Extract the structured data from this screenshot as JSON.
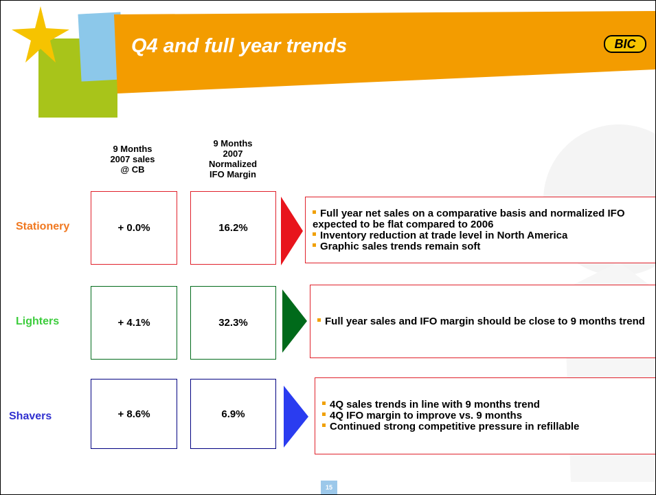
{
  "header": {
    "title": "Q4 and full year trends",
    "logo": "BIC"
  },
  "columns": [
    "9 Months 2007 sales @ CB",
    "9 Months 2007 Normalized IFO Margin"
  ],
  "rows": [
    {
      "label": "Stationery",
      "sales": "+ 0.0%",
      "margin": "16.2%",
      "bullets": [
        "Full year net sales on a comparative basis and normalized IFO expected to be flat compared to 2006",
        "Inventory reduction at trade level in North America",
        "Graphic sales trends remain soft"
      ]
    },
    {
      "label": "Lighters",
      "sales": "+ 4.1%",
      "margin": "32.3%",
      "bullets": [
        "Full year sales and IFO margin should be close to 9 months trend"
      ]
    },
    {
      "label": "Shavers",
      "sales": "+ 8.6%",
      "margin": "6.9%",
      "bullets": [
        "4Q sales trends in line with 9 months trend",
        "4Q IFO margin to improve vs. 9 months",
        "Continued strong competitive pressure in refillable"
      ]
    }
  ],
  "footer": {
    "page": "15"
  }
}
